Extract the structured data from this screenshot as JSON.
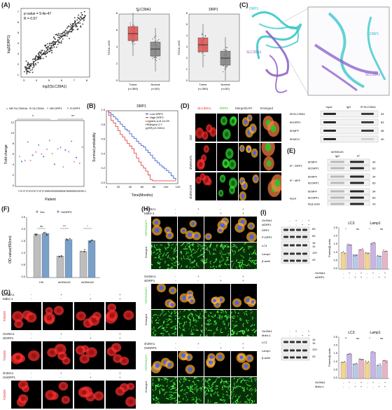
{
  "panels": {
    "A": "(A)",
    "B": "(B)",
    "C": "(C)",
    "D": "(D)",
    "E": "(E)",
    "F": "(F)",
    "G": "(G)",
    "H": "(H)",
    "I": "(I)"
  },
  "panelA": {
    "scatter": {
      "pvalue": "p-value = 9.4e-47",
      "R": "R = 0.57",
      "xlabel": "log2(SLC39A1)",
      "ylabel": "log2(DRP1)",
      "xticks": [
        "3",
        "4",
        "5",
        "6",
        "7",
        "8"
      ],
      "yticks": [
        "1",
        "2",
        "3",
        "4",
        "5",
        "6",
        "7"
      ]
    },
    "box1": {
      "title": "SLC39A1",
      "ylabel": "TCGA-LIHC",
      "groups": [
        "Tumor\n(n=369)",
        "Normal\n(n=50)"
      ],
      "tumor": "Tumor",
      "normal": "Normal",
      "tumorN": "(n=369)",
      "normalN": "(n=50)",
      "yticks": [
        "0",
        "2",
        "4",
        "6",
        "8"
      ],
      "star": "*"
    },
    "box2": {
      "title": "DRP1",
      "ylabel": "TCGA-LIHC",
      "tumor": "Tumor",
      "normal": "Normal",
      "tumorN": "(n=369)",
      "normalN": "(n=50)",
      "yticks": [
        "0",
        "1",
        "2",
        "3",
        "4",
        "5",
        "6"
      ]
    },
    "fold": {
      "legend": [
        "NR-SLC39A1",
        "R-SLC39A1",
        "NR-DRP1",
        "R-DRP1"
      ],
      "ylabel": "Fold change",
      "xlabel": "Patient",
      "stars": [
        "*",
        "**"
      ],
      "yticks": [
        "0",
        "2",
        "4",
        "6",
        "8",
        "10",
        "12"
      ]
    }
  },
  "panelB": {
    "title": "DRP1",
    "legend": [
      "Low DRP1",
      "High DRP1"
    ],
    "stats": [
      "Logrank p=6.1e-05",
      "HR(high)=2.7",
      "p(HR)=0.00011"
    ],
    "xlabel": "Time(Months)",
    "ylabel": "Survival probability",
    "xticks": [
      "0",
      "20",
      "40",
      "60",
      "80",
      "100",
      "120"
    ],
    "yticks": [
      "0.0",
      "0.2",
      "0.4",
      "0.6",
      "0.8",
      "1.0"
    ]
  },
  "panelC": {
    "labels": [
      "DRP1",
      "SLC39A1",
      "DRP1",
      "SLC39A1"
    ]
  },
  "panelD": {
    "cols": [
      "SLC39A1",
      "DRP1",
      "Merge/DAPI",
      "Enlarged"
    ],
    "rows": [
      "Ctrl",
      "sh39A1#1",
      "sh39A1#2"
    ]
  },
  "coip": {
    "headers": [
      "Input",
      "IgG",
      "IP:SLC39A1"
    ],
    "rows": [
      {
        "label": "IB:SLC39A1",
        "kda": "34"
      },
      {
        "label": "IB:DRP1",
        "kda": "83"
      },
      {
        "label": "IB:MFF",
        "kda": "38"
      },
      {
        "label": "IB:MCU",
        "kda": "40"
      }
    ]
  },
  "panelE": {
    "top": "sh39A1#1",
    "headers": [
      "IgG",
      "IP"
    ],
    "groups": [
      {
        "name": "IP : DRP1",
        "rows": [
          {
            "label": "IB:MFF",
            "kda": "34"
          },
          {
            "label": "IB:DRP1",
            "kda": "83"
          }
        ]
      },
      {
        "name": "IP : MFF",
        "rows": [
          {
            "label": "IB:MFF",
            "kda": "34"
          },
          {
            "label": "IB:DRP1",
            "kda": "83"
          }
        ]
      },
      {
        "name": "Input",
        "rows": [
          {
            "label": "IB:MFF",
            "kda": "34"
          },
          {
            "label": "IB:DRP1",
            "kda": "83"
          },
          {
            "label": "IB:β-actin",
            "kda": "43"
          }
        ]
      }
    ]
  },
  "panelF": {
    "legend": [
      "Vec",
      "OeDRP1"
    ],
    "ylabel": "OD value(450nm)",
    "groups": [
      "Ctrl",
      "sh39A1#1",
      "sh39A1#2"
    ],
    "sig": [
      "ns",
      "***",
      "*"
    ],
    "yticks": [
      "0.0",
      "0.5",
      "1.0",
      "1.5",
      "2.0",
      "2.5"
    ]
  },
  "panelG": {
    "blocks": [
      {
        "rows": [
          "Oe39A1",
          "Mdivi-1"
        ],
        "signs": [
          [
            "-",
            "+",
            "-",
            "+"
          ],
          [
            "-",
            "-",
            "+",
            "+"
          ]
        ],
        "stain": "TOM20"
      },
      {
        "rows": [
          "Oe39A1",
          "siDRP1"
        ],
        "signs": [
          [
            "-",
            "+",
            "-",
            "+"
          ],
          [
            "-",
            "-",
            "+",
            "+"
          ]
        ],
        "stain": "TOM20"
      },
      {
        "rows": [
          "sh39A1",
          "OeDRP1"
        ],
        "signs": [
          [
            "-",
            "+",
            "-",
            "+"
          ],
          [
            "-",
            "-",
            "+",
            "+"
          ]
        ],
        "stain": "TOM20"
      }
    ]
  },
  "panelH": {
    "blocks": [
      {
        "rows": [
          "Oe39A1",
          "Mdivi-1"
        ],
        "signs": [
          [
            "-",
            "+",
            "-",
            "+"
          ],
          [
            "-",
            "-",
            "+",
            "+"
          ]
        ],
        "stain": "HSP60/DAPI",
        "enl": "Enlarged"
      },
      {
        "rows": [
          "Oe39A1",
          "siDRP1"
        ],
        "signs": [
          [
            "-",
            "+",
            "-",
            "+"
          ],
          [
            "-",
            "-",
            "+",
            "+"
          ]
        ],
        "stain": "HSP60/DAPI",
        "enl": "Enlarged"
      },
      {
        "rows": [
          "sh39A1",
          "OeDRP1"
        ],
        "signs": [
          [
            "-",
            "+",
            "-",
            "+"
          ],
          [
            "-",
            "-",
            "+",
            "+"
          ]
        ],
        "stain": "HSP60/DAPI",
        "enl": "Enlarged"
      }
    ]
  },
  "panelI": {
    "wb1": {
      "rows": [
        "Oe39A1",
        "siDRP1"
      ],
      "signs": [
        [
          "-",
          "+",
          "-",
          "+"
        ],
        [
          "-",
          "-",
          "+",
          "+"
        ]
      ],
      "bands": [
        {
          "label": "DRP1",
          "kda": "83"
        },
        {
          "label": "P-DRP1",
          "kda": "83"
        },
        {
          "label": "LC3",
          "kda": "16\n14"
        },
        {
          "label": "Lamp1",
          "kda": "120"
        },
        {
          "label": "β-actin",
          "kda": "43"
        }
      ]
    },
    "bar1": {
      "titles": [
        "LC3",
        "Lamp1"
      ],
      "ylabel": "Protein/β-actin",
      "rows": [
        "Oe39A1",
        "siDRP1"
      ],
      "signs": [
        [
          "-",
          "+",
          "-",
          "+",
          "-",
          "+",
          "-",
          "+"
        ],
        [
          "-",
          "-",
          "+",
          "+",
          "-",
          "-",
          "+",
          "+"
        ]
      ],
      "sig": [
        "*",
        "ns",
        "*",
        "ns"
      ],
      "yticks": [
        "0.0",
        "0.5",
        "1.0",
        "1.5",
        "2.0",
        "2.5"
      ]
    },
    "wb2": {
      "rows": [
        "Oe39A1",
        "Mdivi-1"
      ],
      "signs": [
        [
          "-",
          "+",
          "-",
          "+"
        ],
        [
          "-",
          "-",
          "+",
          "+"
        ]
      ],
      "bands": [
        {
          "label": "LC3",
          "kda": "16\n14"
        },
        {
          "label": "Lamp1",
          "kda": "120"
        },
        {
          "label": "β-actin",
          "kda": "43"
        }
      ]
    },
    "bar2": {
      "titles": [
        "LC3",
        "Lamp1"
      ],
      "ylabel": "Protein/β-actin",
      "rows": [
        "Oe39A1",
        "Mdivi-1"
      ],
      "signs": [
        [
          "-",
          "+",
          "-",
          "+",
          "-",
          "+",
          "-",
          "+"
        ],
        [
          "-",
          "-",
          "+",
          "+",
          "-",
          "-",
          "+",
          "+"
        ]
      ],
      "sig": [
        "**",
        "ns",
        "*",
        "ns"
      ],
      "yticks": [
        "0.0",
        "0.5",
        "1.0",
        "1.5",
        "2.0",
        "2.5"
      ]
    }
  },
  "colors": {
    "tumor": "#e05a5a",
    "normal": "#888888",
    "low": "#3355cc",
    "high": "#e03030",
    "cyan": "#22c1c3",
    "purple": "#8a5cc8",
    "red": "#e82020",
    "green": "#29c429",
    "vec": "#9e9e9e",
    "oe": "#7a9fc9"
  }
}
